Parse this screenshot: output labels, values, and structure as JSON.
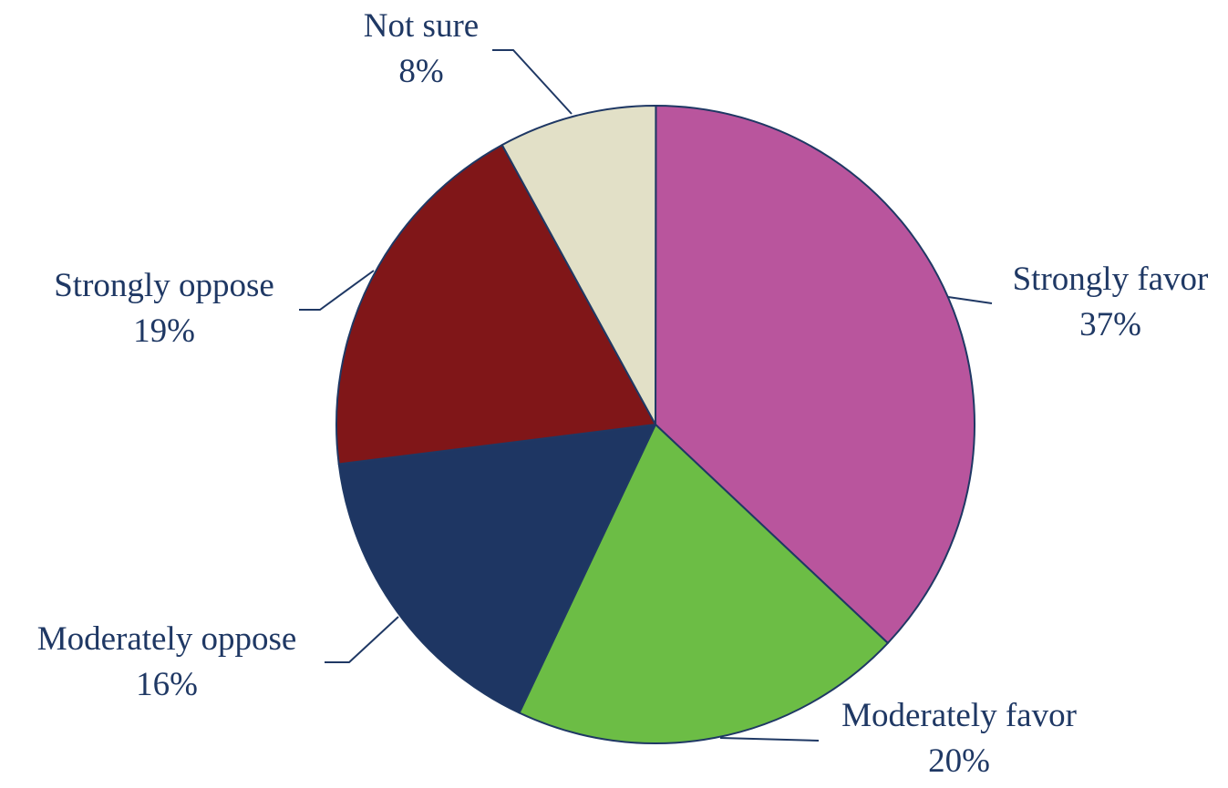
{
  "chart_data": {
    "type": "pie",
    "title": "",
    "label_color": "#1f3864",
    "outline_color": "#1f3864",
    "slices": [
      {
        "label": "Strongly favor",
        "value": 37,
        "display": "37%",
        "color": "#b9559d"
      },
      {
        "label": "Moderately favor",
        "value": 20,
        "display": "20%",
        "color": "#6cbd45"
      },
      {
        "label": "Moderately oppose",
        "value": 16,
        "display": "16%",
        "color": "#1e3663"
      },
      {
        "label": "Strongly oppose",
        "value": 19,
        "display": "19%",
        "color": "#801618"
      },
      {
        "label": "Not sure",
        "value": 8,
        "display": "8%",
        "color": "#e2e0c7"
      }
    ]
  }
}
